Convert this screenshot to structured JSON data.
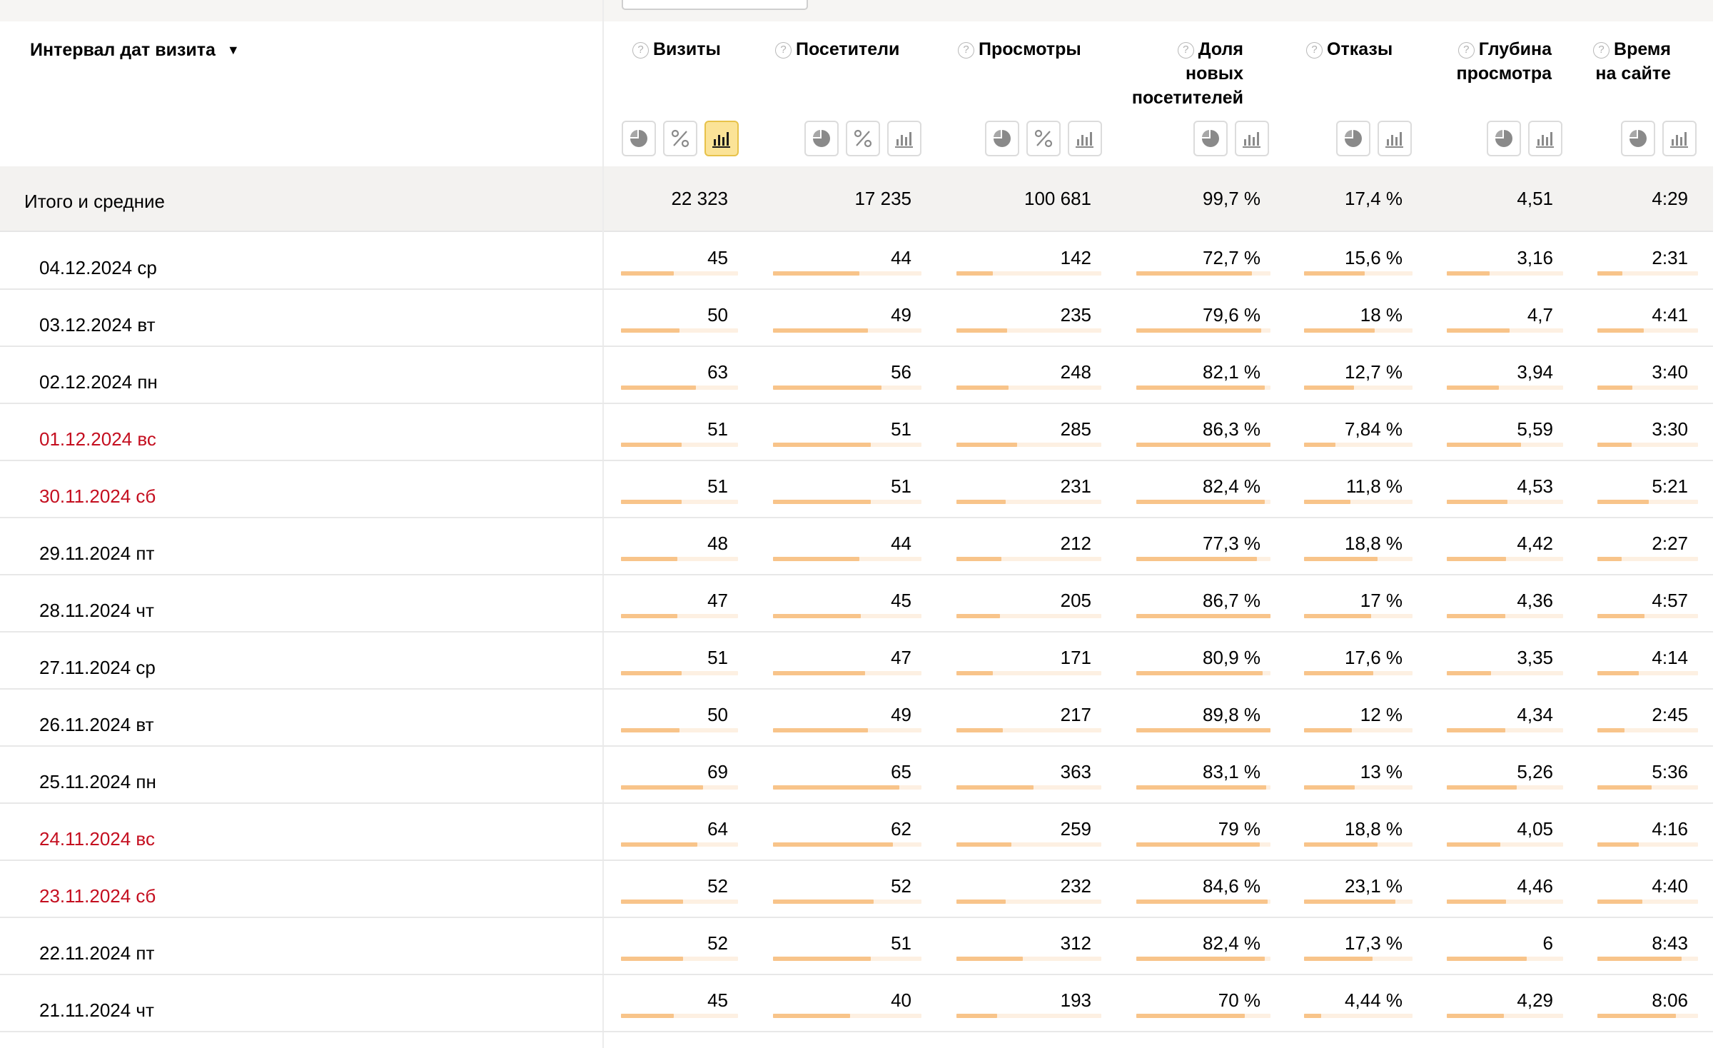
{
  "header": {
    "dimension_label": "Интервал дат визита",
    "sort_arrow": "▼",
    "metrics": [
      {
        "key": "visits",
        "lines": [
          "Визиты"
        ],
        "buttons": [
          "pie-chart-icon",
          "percent-icon",
          "bar-chart-icon"
        ],
        "active_button": "bar-chart-icon"
      },
      {
        "key": "visitors",
        "lines": [
          "Посетители"
        ],
        "buttons": [
          "pie-chart-icon",
          "percent-icon",
          "bar-chart-icon"
        ]
      },
      {
        "key": "views",
        "lines": [
          "Просмотры"
        ],
        "buttons": [
          "pie-chart-icon",
          "percent-icon",
          "bar-chart-icon"
        ]
      },
      {
        "key": "new_share",
        "lines": [
          "Доля",
          "новых",
          "посетителей"
        ],
        "buttons": [
          "pie-chart-icon",
          "bar-chart-icon"
        ]
      },
      {
        "key": "bounces",
        "lines": [
          "Отказы"
        ],
        "buttons": [
          "pie-chart-icon",
          "bar-chart-icon"
        ]
      },
      {
        "key": "depth",
        "lines": [
          "Глубина",
          "просмотра"
        ],
        "buttons": [
          "pie-chart-icon",
          "bar-chart-icon"
        ]
      },
      {
        "key": "time",
        "lines": [
          "Время",
          "на сайте"
        ],
        "buttons": [
          "pie-chart-icon",
          "bar-chart-icon"
        ]
      }
    ]
  },
  "totals": {
    "label": "Итого и средние",
    "values": [
      "22 323",
      "17 235",
      "100 681",
      "99,7 %",
      "17,4 %",
      "4,51",
      "4:29"
    ]
  },
  "rows": [
    {
      "date": "04.12.2024 ср",
      "weekend": false,
      "values": [
        "45",
        "44",
        "142",
        "72,7 %",
        "15,6 %",
        "3,16",
        "2:31"
      ],
      "fill": [
        0.45,
        0.58,
        0.25,
        0.86,
        0.56,
        0.37,
        0.25
      ]
    },
    {
      "date": "03.12.2024 вт",
      "weekend": false,
      "values": [
        "50",
        "49",
        "235",
        "79,6 %",
        "18 %",
        "4,7",
        "4:41"
      ],
      "fill": [
        0.5,
        0.64,
        0.35,
        0.93,
        0.65,
        0.54,
        0.46
      ]
    },
    {
      "date": "02.12.2024 пн",
      "weekend": false,
      "values": [
        "63",
        "56",
        "248",
        "82,1 %",
        "12,7 %",
        "3,94",
        "3:40"
      ],
      "fill": [
        0.64,
        0.73,
        0.36,
        0.96,
        0.46,
        0.45,
        0.35
      ]
    },
    {
      "date": "01.12.2024 вс",
      "weekend": true,
      "values": [
        "51",
        "51",
        "285",
        "86,3 %",
        "7,84 %",
        "5,59",
        "3:30"
      ],
      "fill": [
        0.52,
        0.66,
        0.42,
        1.0,
        0.29,
        0.64,
        0.34
      ]
    },
    {
      "date": "30.11.2024 сб",
      "weekend": true,
      "values": [
        "51",
        "51",
        "231",
        "82,4 %",
        "11,8 %",
        "4,53",
        "5:21"
      ],
      "fill": [
        0.52,
        0.66,
        0.34,
        0.96,
        0.43,
        0.52,
        0.51
      ]
    },
    {
      "date": "29.11.2024 пт",
      "weekend": false,
      "values": [
        "48",
        "44",
        "212",
        "77,3 %",
        "18,8 %",
        "4,42",
        "2:27"
      ],
      "fill": [
        0.48,
        0.58,
        0.31,
        0.9,
        0.68,
        0.51,
        0.24
      ]
    },
    {
      "date": "28.11.2024 чт",
      "weekend": false,
      "values": [
        "47",
        "45",
        "205",
        "86,7 %",
        "17 %",
        "4,36",
        "4:57"
      ],
      "fill": [
        0.48,
        0.59,
        0.3,
        1.0,
        0.62,
        0.5,
        0.47
      ]
    },
    {
      "date": "27.11.2024 ср",
      "weekend": false,
      "values": [
        "51",
        "47",
        "171",
        "80,9 %",
        "17,6 %",
        "3,35",
        "4:14"
      ],
      "fill": [
        0.52,
        0.62,
        0.25,
        0.94,
        0.64,
        0.38,
        0.41
      ]
    },
    {
      "date": "26.11.2024 вт",
      "weekend": false,
      "values": [
        "50",
        "49",
        "217",
        "89,8 %",
        "12 %",
        "4,34",
        "2:45"
      ],
      "fill": [
        0.5,
        0.64,
        0.32,
        1.0,
        0.44,
        0.5,
        0.27
      ]
    },
    {
      "date": "25.11.2024 пн",
      "weekend": false,
      "values": [
        "69",
        "65",
        "363",
        "83,1 %",
        "13 %",
        "5,26",
        "5:36"
      ],
      "fill": [
        0.7,
        0.85,
        0.53,
        0.97,
        0.47,
        0.6,
        0.54
      ]
    },
    {
      "date": "24.11.2024 вс",
      "weekend": true,
      "values": [
        "64",
        "62",
        "259",
        "79 %",
        "18,8 %",
        "4,05",
        "4:16"
      ],
      "fill": [
        0.65,
        0.81,
        0.38,
        0.92,
        0.68,
        0.46,
        0.41
      ]
    },
    {
      "date": "23.11.2024 сб",
      "weekend": true,
      "values": [
        "52",
        "52",
        "232",
        "84,6 %",
        "23,1 %",
        "4,46",
        "4:40"
      ],
      "fill": [
        0.53,
        0.68,
        0.34,
        0.98,
        0.84,
        0.51,
        0.45
      ]
    },
    {
      "date": "22.11.2024 пт",
      "weekend": false,
      "values": [
        "52",
        "51",
        "312",
        "82,4 %",
        "17,3 %",
        "6",
        "8:43"
      ],
      "fill": [
        0.53,
        0.66,
        0.46,
        0.96,
        0.63,
        0.69,
        0.84
      ]
    },
    {
      "date": "21.11.2024 чт",
      "weekend": false,
      "values": [
        "45",
        "40",
        "193",
        "70 %",
        "4,44 %",
        "4,29",
        "8:06"
      ],
      "fill": [
        0.45,
        0.52,
        0.28,
        0.81,
        0.16,
        0.49,
        0.78
      ]
    }
  ]
}
